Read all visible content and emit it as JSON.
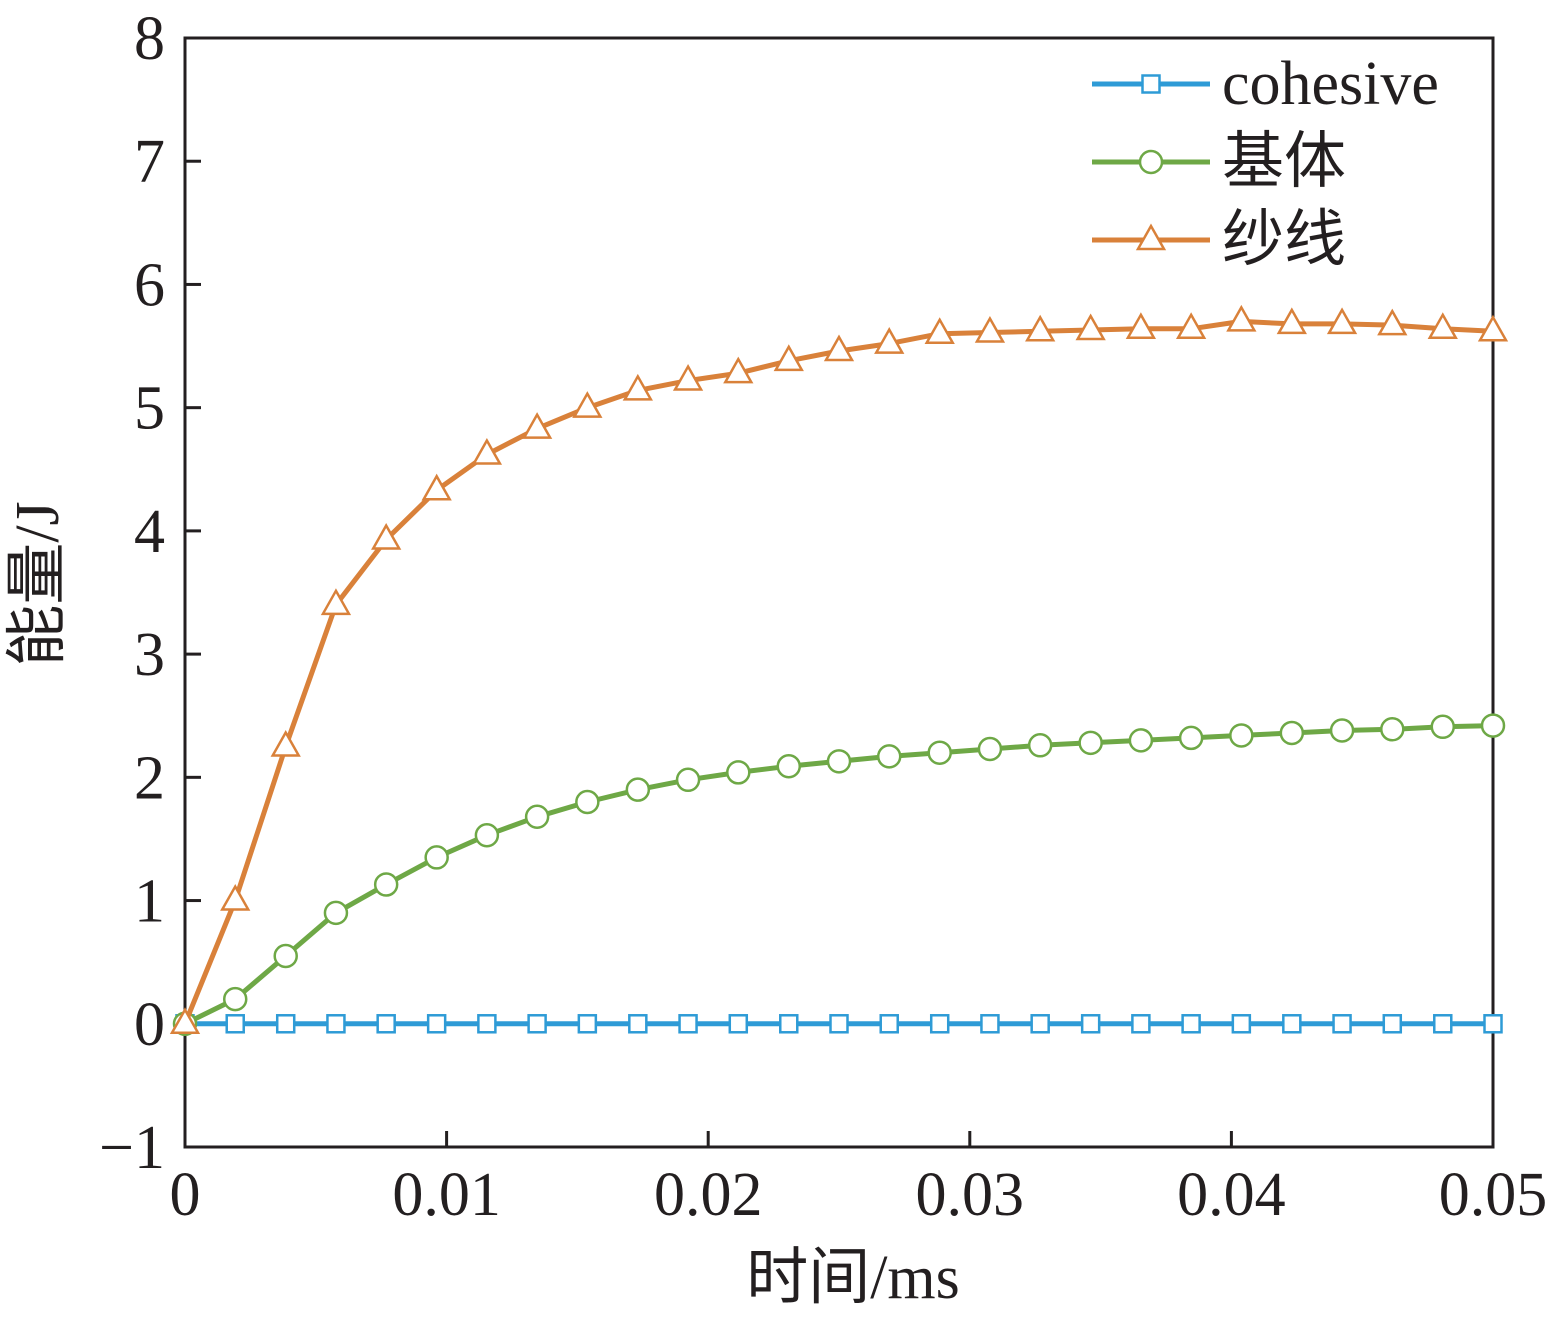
{
  "chart_data": {
    "type": "line",
    "xlabel": "时间/ms",
    "ylabel": "能量/J",
    "xlim": [
      0,
      0.05
    ],
    "ylim": [
      -1,
      8
    ],
    "xticks": [
      0,
      0.01,
      0.02,
      0.03,
      0.04,
      0.05
    ],
    "xtick_labels": [
      "0",
      "0.01",
      "0.02",
      "0.03",
      "0.04",
      "0.05"
    ],
    "yticks": [
      -1,
      0,
      1,
      2,
      3,
      4,
      5,
      6,
      7,
      8
    ],
    "ytick_labels": [
      "−1",
      "0",
      "1",
      "2",
      "3",
      "4",
      "5",
      "6",
      "7",
      "8"
    ],
    "grid": false,
    "legend_position": "top-right",
    "series": [
      {
        "name": "cohesive",
        "color": "#2e9bd6",
        "marker": "square",
        "x": [
          0,
          0.00192,
          0.00385,
          0.00577,
          0.00769,
          0.00962,
          0.01154,
          0.01346,
          0.01538,
          0.01731,
          0.01923,
          0.02115,
          0.02308,
          0.025,
          0.02692,
          0.02885,
          0.03077,
          0.03269,
          0.03462,
          0.03654,
          0.03846,
          0.04038,
          0.04231,
          0.04423,
          0.04615,
          0.04808,
          0.05
        ],
        "y": [
          0,
          0,
          0,
          0,
          0,
          0,
          0,
          0,
          0,
          0,
          0,
          0,
          0,
          0,
          0,
          0,
          0,
          0,
          0,
          0,
          0,
          0,
          0,
          0,
          0,
          0,
          0
        ]
      },
      {
        "name": "基体",
        "color": "#6ea846",
        "marker": "circle",
        "x": [
          0,
          0.00192,
          0.00385,
          0.00577,
          0.00769,
          0.00962,
          0.01154,
          0.01346,
          0.01538,
          0.01731,
          0.01923,
          0.02115,
          0.02308,
          0.025,
          0.02692,
          0.02885,
          0.03077,
          0.03269,
          0.03462,
          0.03654,
          0.03846,
          0.04038,
          0.04231,
          0.04423,
          0.04615,
          0.04808,
          0.05
        ],
        "y": [
          0,
          0.2,
          0.55,
          0.9,
          1.13,
          1.35,
          1.53,
          1.68,
          1.8,
          1.9,
          1.98,
          2.04,
          2.09,
          2.13,
          2.17,
          2.2,
          2.23,
          2.26,
          2.28,
          2.3,
          2.32,
          2.34,
          2.36,
          2.38,
          2.39,
          2.41,
          2.42
        ]
      },
      {
        "name": "纱线",
        "color": "#d9813a",
        "marker": "triangle",
        "x": [
          0,
          0.00192,
          0.00385,
          0.00577,
          0.00769,
          0.00962,
          0.01154,
          0.01346,
          0.01538,
          0.01731,
          0.01923,
          0.02115,
          0.02308,
          0.025,
          0.02692,
          0.02885,
          0.03077,
          0.03269,
          0.03462,
          0.03654,
          0.03846,
          0.04038,
          0.04231,
          0.04423,
          0.04615,
          0.04808,
          0.05
        ],
        "y": [
          0,
          1.0,
          2.25,
          3.4,
          3.93,
          4.33,
          4.62,
          4.83,
          5.0,
          5.14,
          5.22,
          5.28,
          5.38,
          5.46,
          5.52,
          5.6,
          5.61,
          5.62,
          5.63,
          5.64,
          5.64,
          5.7,
          5.68,
          5.68,
          5.67,
          5.64,
          5.62
        ]
      }
    ]
  }
}
